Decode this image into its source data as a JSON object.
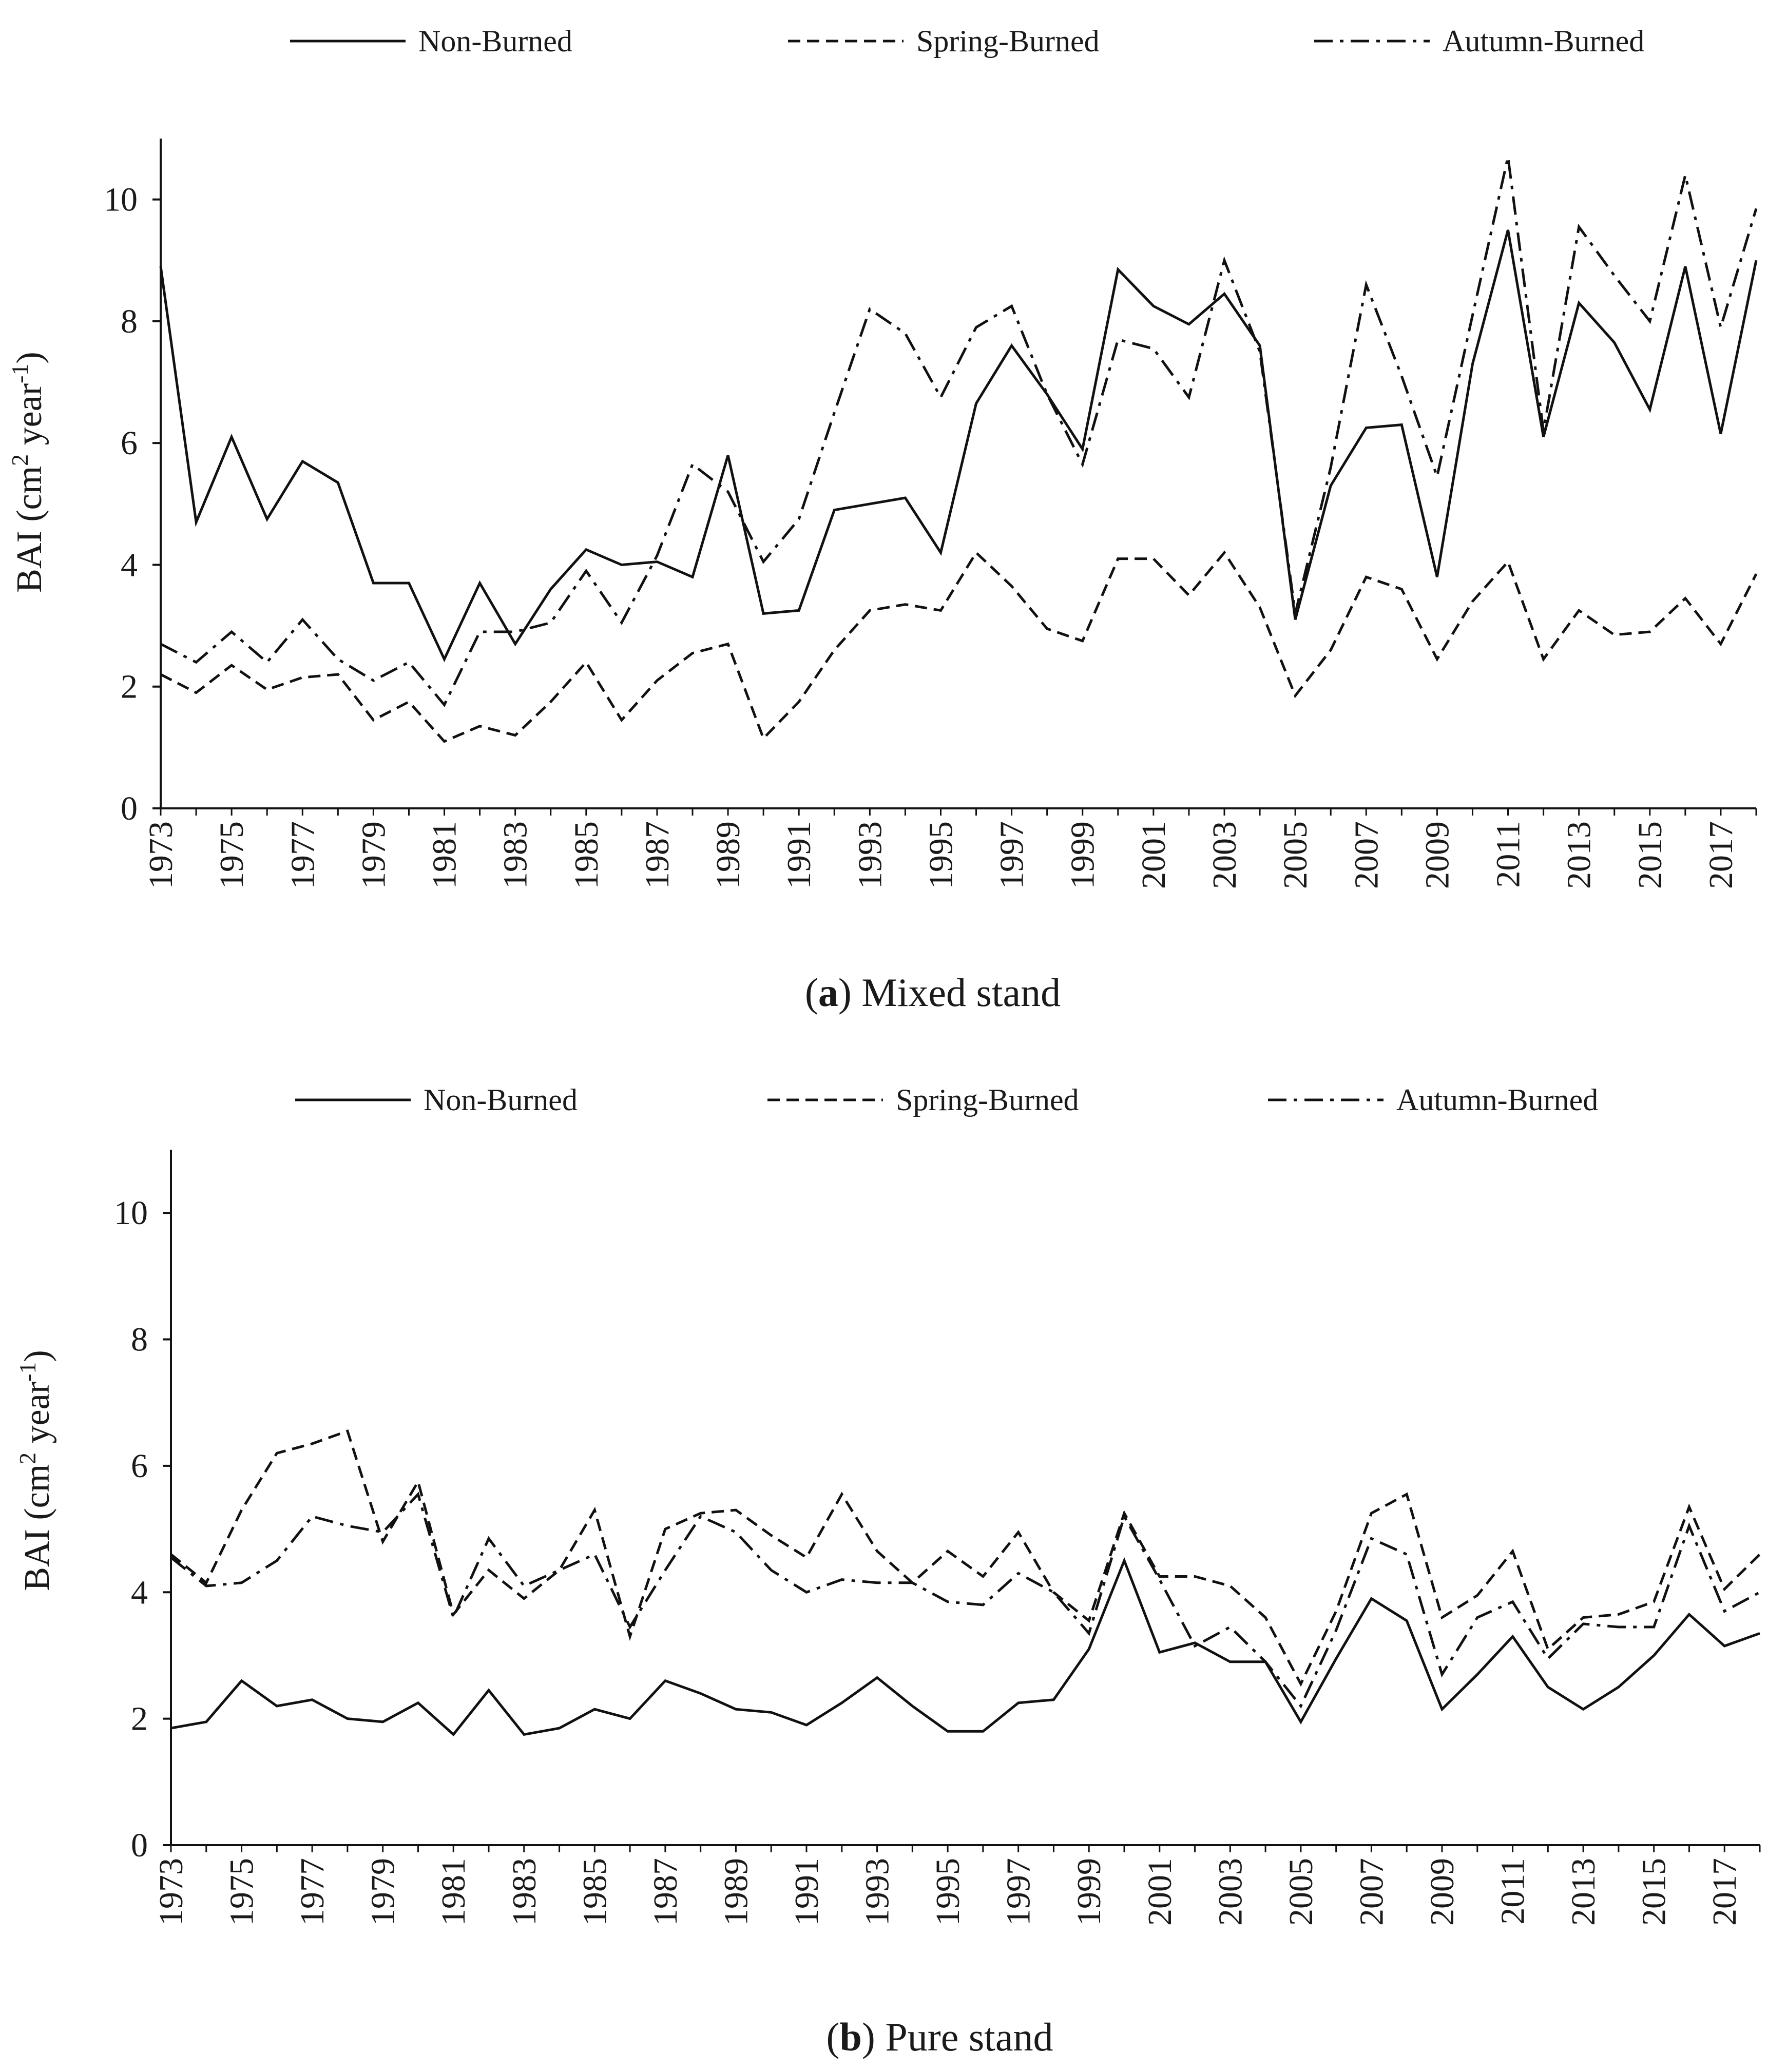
{
  "chart_data": [
    {
      "panel": "a",
      "type": "line",
      "caption_letter": "a",
      "caption_text": "Mixed stand",
      "ylabel_main": "BAI (cm",
      "ylabel_sup2": "2",
      "ylabel_mid": " year",
      "ylabel_supneg": "-1",
      "ylabel_end": ")",
      "ylim": [
        0,
        11
      ],
      "yticks": [
        "0",
        "2",
        "4",
        "6",
        "8",
        "10"
      ],
      "x": [
        1973,
        1974,
        1975,
        1976,
        1977,
        1978,
        1979,
        1980,
        1981,
        1982,
        1983,
        1984,
        1985,
        1986,
        1987,
        1988,
        1989,
        1990,
        1991,
        1992,
        1993,
        1994,
        1995,
        1996,
        1997,
        1998,
        1999,
        2000,
        2001,
        2002,
        2003,
        2004,
        2005,
        2006,
        2007,
        2008,
        2009,
        2010,
        2011,
        2012,
        2013,
        2014,
        2015,
        2016,
        2017,
        2018
      ],
      "xticks": [
        "1973",
        "1975",
        "1977",
        "1979",
        "1981",
        "1983",
        "1985",
        "1987",
        "1989",
        "1991",
        "1993",
        "1995",
        "1997",
        "1999",
        "2001",
        "2003",
        "2005",
        "2007",
        "2009",
        "2011",
        "2013",
        "2015",
        "2017"
      ],
      "series": [
        {
          "name": "Non-Burned",
          "style": "solid",
          "values": [
            8.9,
            4.7,
            6.1,
            4.75,
            5.7,
            5.35,
            3.7,
            3.7,
            2.45,
            3.7,
            2.7,
            3.6,
            4.25,
            4.0,
            4.05,
            3.8,
            5.8,
            3.2,
            3.25,
            4.9,
            5.0,
            5.1,
            4.2,
            6.65,
            7.6,
            6.8,
            5.9,
            8.85,
            8.25,
            7.95,
            8.45,
            7.6,
            3.1,
            5.3,
            6.25,
            6.3,
            3.8,
            7.3,
            9.5,
            6.1,
            8.3,
            7.65,
            6.55,
            8.9,
            6.15,
            9.0
          ]
        },
        {
          "name": "Spring-Burned",
          "style": "dashed",
          "values": [
            2.2,
            1.9,
            2.35,
            1.95,
            2.15,
            2.2,
            1.45,
            1.75,
            1.1,
            1.35,
            1.2,
            1.75,
            2.4,
            1.45,
            2.1,
            2.55,
            2.7,
            1.15,
            1.75,
            2.6,
            3.25,
            3.35,
            3.25,
            4.2,
            3.65,
            2.95,
            2.75,
            4.1,
            4.1,
            3.5,
            4.2,
            3.3,
            1.85,
            2.6,
            3.8,
            3.6,
            2.45,
            3.4,
            4.05,
            2.45,
            3.25,
            2.85,
            2.9,
            3.45,
            2.7,
            3.85
          ]
        },
        {
          "name": "Autumn-Burned",
          "style": "dashdot",
          "values": [
            2.7,
            2.4,
            2.9,
            2.4,
            3.1,
            2.45,
            2.1,
            2.4,
            1.7,
            2.9,
            2.9,
            3.05,
            3.9,
            3.05,
            4.15,
            5.65,
            5.2,
            4.05,
            4.75,
            6.5,
            8.2,
            7.8,
            6.75,
            7.9,
            8.25,
            6.8,
            5.65,
            7.7,
            7.55,
            6.75,
            9.0,
            7.5,
            3.2,
            5.6,
            8.6,
            7.1,
            5.45,
            8.1,
            10.7,
            6.2,
            9.55,
            8.75,
            8.0,
            10.4,
            7.9,
            9.85
          ]
        }
      ]
    },
    {
      "panel": "b",
      "type": "line",
      "caption_letter": "b",
      "caption_text": "Pure stand",
      "ylabel_main": "BAI (cm",
      "ylabel_sup2": "2",
      "ylabel_mid": " year",
      "ylabel_supneg": "-1",
      "ylabel_end": ")",
      "ylim": [
        0,
        11
      ],
      "yticks": [
        "0",
        "2",
        "4",
        "6",
        "8",
        "10"
      ],
      "x": [
        1973,
        1974,
        1975,
        1976,
        1977,
        1978,
        1979,
        1980,
        1981,
        1982,
        1983,
        1984,
        1985,
        1986,
        1987,
        1988,
        1989,
        1990,
        1991,
        1992,
        1993,
        1994,
        1995,
        1996,
        1997,
        1998,
        1999,
        2000,
        2001,
        2002,
        2003,
        2004,
        2005,
        2006,
        2007,
        2008,
        2009,
        2010,
        2011,
        2012,
        2013,
        2014,
        2015,
        2016,
        2017,
        2018
      ],
      "xticks": [
        "1973",
        "1975",
        "1977",
        "1979",
        "1981",
        "1983",
        "1985",
        "1987",
        "1989",
        "1991",
        "1993",
        "1995",
        "1997",
        "1999",
        "2001",
        "2003",
        "2005",
        "2007",
        "2009",
        "2011",
        "2013",
        "2015",
        "2017"
      ],
      "series": [
        {
          "name": "Non-Burned",
          "style": "solid",
          "values": [
            1.85,
            1.95,
            2.6,
            2.2,
            2.3,
            2.0,
            1.95,
            2.25,
            1.75,
            2.45,
            1.75,
            1.85,
            2.15,
            2.0,
            2.6,
            2.4,
            2.15,
            2.1,
            1.9,
            2.25,
            2.65,
            2.2,
            1.8,
            1.8,
            2.25,
            2.3,
            3.1,
            4.5,
            3.05,
            3.2,
            2.9,
            2.9,
            1.95,
            2.95,
            3.9,
            3.55,
            2.15,
            2.7,
            3.3,
            2.5,
            2.15,
            2.5,
            3.0,
            3.65,
            3.15,
            3.35
          ]
        },
        {
          "name": "Spring-Burned",
          "style": "dashed",
          "values": [
            4.6,
            4.15,
            5.3,
            6.2,
            6.35,
            6.55,
            4.8,
            5.75,
            3.65,
            4.35,
            3.9,
            4.35,
            5.3,
            3.3,
            5.0,
            5.25,
            5.3,
            4.9,
            4.55,
            5.55,
            4.65,
            4.15,
            4.65,
            4.25,
            4.95,
            4.0,
            3.55,
            5.25,
            4.25,
            4.25,
            4.1,
            3.6,
            2.55,
            3.7,
            5.25,
            5.55,
            3.6,
            3.95,
            4.65,
            3.1,
            3.6,
            3.65,
            3.85,
            5.35,
            4.05,
            4.6
          ]
        },
        {
          "name": "Autumn-Burned",
          "style": "dashdot",
          "values": [
            4.55,
            4.1,
            4.15,
            4.5,
            5.2,
            5.05,
            4.95,
            5.55,
            3.6,
            4.85,
            4.1,
            4.35,
            4.6,
            3.45,
            4.35,
            5.2,
            4.95,
            4.35,
            4.0,
            4.2,
            4.15,
            4.15,
            3.85,
            3.8,
            4.3,
            4.0,
            3.35,
            5.2,
            4.2,
            3.15,
            3.45,
            2.9,
            2.2,
            3.4,
            4.85,
            4.6,
            2.7,
            3.6,
            3.85,
            2.95,
            3.5,
            3.45,
            3.45,
            5.05,
            3.7,
            4.0
          ]
        }
      ]
    }
  ]
}
